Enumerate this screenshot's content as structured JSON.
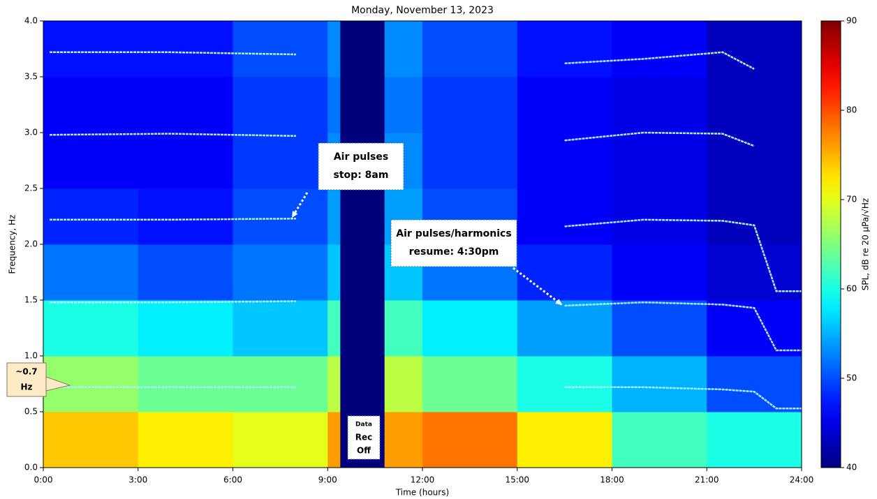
{
  "chart_data": {
    "type": "heatmap",
    "title": "Monday, November 13, 2023",
    "x_label": "Time (hours)",
    "y_label": "Frequency, Hz",
    "colorbar_label": "SPL, dB re 20 µPa/√Hz",
    "colormap": "jet",
    "x_edges": [
      0,
      3,
      6,
      9,
      12,
      15,
      18,
      21,
      24
    ],
    "y_edges": [
      0,
      0.5,
      1,
      1.5,
      2,
      2.5,
      3,
      3.5,
      4
    ],
    "z": [
      [
        74,
        72,
        70,
        76,
        78,
        72,
        62,
        60
      ],
      [
        66,
        64,
        64,
        68,
        64,
        60,
        55,
        50
      ],
      [
        60,
        58,
        56,
        62,
        58,
        54,
        50,
        46
      ],
      [
        52,
        50,
        52,
        56,
        52,
        48,
        46,
        44
      ],
      [
        48,
        47,
        50,
        54,
        50,
        46,
        45,
        43
      ],
      [
        46,
        46,
        49,
        53,
        49,
        46,
        45,
        43
      ],
      [
        46,
        46,
        49,
        52,
        49,
        46,
        45,
        43
      ],
      [
        47,
        47,
        50,
        53,
        50,
        47,
        46,
        43
      ]
    ],
    "no_data": [
      9.4,
      10.8
    ],
    "no_data_color": "#00007a",
    "harmonic_color": "#a8f0ff",
    "series": [
      {
        "x": [
          0.2,
          4,
          8,
          12,
          16.5,
          19,
          21.5,
          22.5,
          23.2,
          24
        ],
        "values": [
          0.72,
          0.72,
          0.72,
          null,
          0.72,
          0.72,
          0.7,
          0.68,
          0.53,
          0.53
        ]
      },
      {
        "x": [
          0.2,
          4,
          8,
          12,
          16.5,
          19,
          21.5,
          22.5,
          23.2,
          24
        ],
        "values": [
          1.48,
          1.48,
          1.49,
          null,
          1.45,
          1.48,
          1.46,
          1.43,
          1.05,
          1.05
        ]
      },
      {
        "x": [
          0.2,
          4,
          8,
          12,
          16.5,
          19,
          21.5,
          22.5,
          23.2,
          24
        ],
        "values": [
          2.22,
          2.22,
          2.23,
          null,
          2.16,
          2.22,
          2.21,
          2.17,
          1.58,
          1.58
        ]
      },
      {
        "x": [
          0.2,
          4,
          8,
          12,
          16.5,
          19,
          21.5,
          22.5,
          23.2,
          24
        ],
        "values": [
          2.98,
          2.99,
          2.97,
          null,
          2.93,
          3.0,
          2.99,
          2.88,
          null,
          null
        ]
      },
      {
        "x": [
          0.2,
          4,
          8,
          12,
          16.5,
          19,
          21.5,
          22.5,
          23.2,
          24
        ],
        "values": [
          3.72,
          3.72,
          3.7,
          null,
          3.62,
          3.66,
          3.72,
          3.57,
          null,
          null
        ]
      }
    ],
    "xlim": [
      0,
      24
    ],
    "xticks": [
      {
        "value": 0,
        "label": "0:00"
      },
      {
        "value": 3,
        "label": "3:00"
      },
      {
        "value": 6,
        "label": "6:00"
      },
      {
        "value": 9,
        "label": "9:00"
      },
      {
        "value": 12,
        "label": "12:00"
      },
      {
        "value": 15,
        "label": "15:00"
      },
      {
        "value": 18,
        "label": "18:00"
      },
      {
        "value": 21,
        "label": "21:00"
      },
      {
        "value": 24,
        "label": "24:00"
      }
    ],
    "ylim": [
      0,
      4
    ],
    "yticks": [
      {
        "value": 0,
        "label": "0.0"
      },
      {
        "value": 0.5,
        "label": "0.5"
      },
      {
        "value": 1,
        "label": "1.0"
      },
      {
        "value": 1.5,
        "label": "1.5"
      },
      {
        "value": 2,
        "label": "2.0"
      },
      {
        "value": 2.5,
        "label": "2.5"
      },
      {
        "value": 3,
        "label": "3.0"
      },
      {
        "value": 3.5,
        "label": "3.5"
      },
      {
        "value": 4,
        "label": "4.0"
      }
    ],
    "clim": [
      40,
      90
    ],
    "cticks": [
      40,
      50,
      60,
      70,
      80,
      90
    ],
    "annotations": [
      {
        "lines": [
          "~0.7",
          "Hz"
        ]
      },
      {
        "lines": [
          "Air pulses",
          "stop: 8am"
        ]
      },
      {
        "lines": [
          "Air pulses/harmonics",
          "resume: 4:30pm"
        ]
      },
      {
        "lines": [
          "Data",
          "Rec",
          "Off"
        ]
      }
    ]
  }
}
